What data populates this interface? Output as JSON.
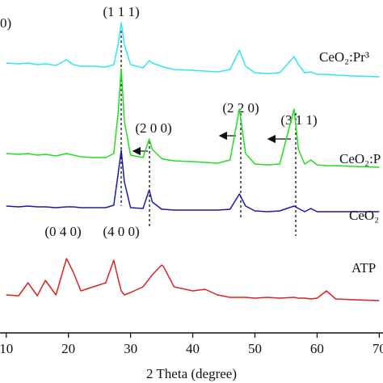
{
  "chart_data": {
    "type": "line",
    "x_label": "2 Theta (degree)",
    "x": [
      10,
      12,
      13.5,
      15,
      16.3,
      18,
      19.7,
      20.8,
      22,
      24,
      26,
      27.3,
      28,
      28.5,
      29,
      30,
      32,
      33,
      33.5,
      35,
      35.3,
      37,
      40,
      42,
      44,
      46,
      47.5,
      48.5,
      50,
      52,
      54,
      56.3,
      57,
      58,
      59,
      60,
      61.5,
      63,
      66,
      70
    ],
    "xlim": [
      9,
      70.6
    ],
    "xticks": [
      10,
      20,
      30,
      40,
      50,
      60,
      70
    ],
    "ylim": [
      0,
      103
    ],
    "series": [
      {
        "name": "CeO₂:Pr³",
        "color": "#33e6f0",
        "values": [
          83.5,
          83.25,
          83.5,
          83,
          83.25,
          82.75,
          84.5,
          83,
          82.5,
          82.5,
          82.25,
          83,
          89.25,
          96,
          89.25,
          83,
          82,
          84.25,
          83.5,
          82.5,
          82.25,
          81.5,
          81.25,
          81,
          80.75,
          81.5,
          87.5,
          82.5,
          80.5,
          80.25,
          80.5,
          85.5,
          83,
          80.5,
          80.75,
          80,
          80,
          79.75,
          79.5,
          79.25
        ]
      },
      {
        "name": "CeO₂:P",
        "color": "#22dd22",
        "values": [
          55.5,
          55.25,
          55.5,
          55,
          55.25,
          54.75,
          55.5,
          55,
          54.5,
          54.25,
          54.25,
          55.5,
          68,
          81.75,
          65.5,
          55,
          54.25,
          60,
          56.75,
          54,
          53.75,
          53.25,
          53,
          52.75,
          52.5,
          53.5,
          69.25,
          55.5,
          52.25,
          52,
          52.25,
          69.25,
          56.75,
          52.25,
          53.5,
          52,
          51.75,
          51.75,
          51.5,
          51.25
        ]
      },
      {
        "name": "CeO₂",
        "color": "#1a1aa6",
        "values": [
          39.25,
          39,
          39.25,
          39,
          39,
          38.75,
          39,
          39,
          38.75,
          38.75,
          38.75,
          39.5,
          49.25,
          56.5,
          46.75,
          38.75,
          38.5,
          44.25,
          40.5,
          38.25,
          38.25,
          38,
          38,
          38,
          38,
          38.25,
          43,
          39.25,
          37.75,
          37.5,
          37.75,
          39.25,
          38.5,
          37.5,
          38.5,
          37.5,
          37.5,
          37.5,
          37.5,
          37.5
        ]
      },
      {
        "name": "ATP",
        "color": "#dd2222",
        "values": [
          11.75,
          11.5,
          15.5,
          11.5,
          16.25,
          11.75,
          23,
          18.75,
          13,
          14.25,
          15.5,
          22.5,
          16.75,
          13,
          11.75,
          12.5,
          14.25,
          16.75,
          18,
          21,
          20.5,
          14.25,
          13,
          13.5,
          11.75,
          11,
          11,
          11,
          10.75,
          11,
          10.75,
          11,
          10.75,
          10.75,
          10.5,
          10.75,
          13,
          10.5,
          10.25,
          10
        ]
      }
    ],
    "annotations": [
      "0)",
      "(1 1 1)",
      "(2 0 0)",
      "(2 2 0)",
      "(3 1 1)",
      "(0 4 0)",
      "(4 0 0)"
    ]
  }
}
